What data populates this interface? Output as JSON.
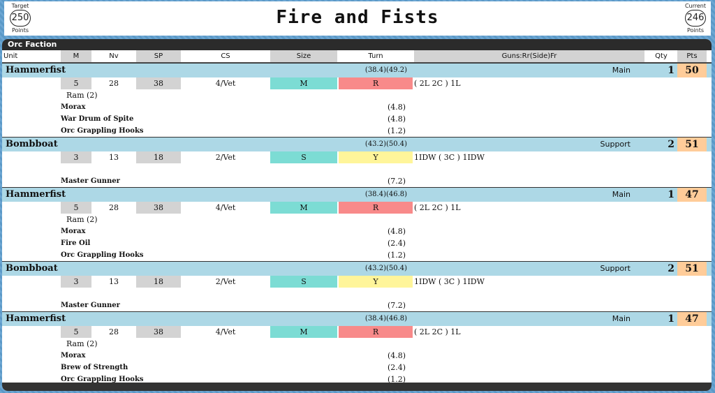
{
  "header": {
    "title": "Fire and Fists",
    "target": {
      "label_top": "Target",
      "value": "250",
      "label_bottom": "Points"
    },
    "current": {
      "label_top": "Current",
      "value": "246",
      "label_bottom": "Points"
    }
  },
  "faction": "Orc Faction",
  "columns": {
    "unit": "Unit",
    "m": "M",
    "nv": "Nv",
    "sp": "SP",
    "cs": "CS",
    "size": "Size",
    "turn": "Turn",
    "guns": "Guns:Rr(Side)Fr",
    "qty": "Qty",
    "pts": "Pts"
  },
  "units": [
    {
      "name": "Hammerfist",
      "cost": "(38.4)(49.2)",
      "role": "Main",
      "qty": "1",
      "pts": "50",
      "stats": {
        "m": "5",
        "nv": "28",
        "sp": "38",
        "cs": "4/Vet",
        "size": "M",
        "turn": "R",
        "guns": "( 2L 2C ) 1L"
      },
      "ram": "Ram (2)",
      "upgrades": [
        {
          "name": "Morax",
          "cost": "(4.8)"
        },
        {
          "name": "War Drum of Spite",
          "cost": "(4.8)"
        },
        {
          "name": "Orc Grappling Hooks",
          "cost": "(1.2)"
        }
      ]
    },
    {
      "name": "Bombboat",
      "cost": "(43.2)(50.4)",
      "role": "Support",
      "qty": "2",
      "pts": "51",
      "stats": {
        "m": "3",
        "nv": "13",
        "sp": "18",
        "cs": "2/Vet",
        "size": "S",
        "turn": "Y",
        "guns": "1IDW ( 3C ) 1IDW"
      },
      "ram": "",
      "upgrades": [
        {
          "name": "Master Gunner",
          "cost": "(7.2)"
        }
      ]
    },
    {
      "name": "Hammerfist",
      "cost": "(38.4)(46.8)",
      "role": "Main",
      "qty": "1",
      "pts": "47",
      "stats": {
        "m": "5",
        "nv": "28",
        "sp": "38",
        "cs": "4/Vet",
        "size": "M",
        "turn": "R",
        "guns": "( 2L 2C ) 1L"
      },
      "ram": "Ram (2)",
      "upgrades": [
        {
          "name": "Morax",
          "cost": "(4.8)"
        },
        {
          "name": "Fire Oil",
          "cost": "(2.4)"
        },
        {
          "name": "Orc Grappling Hooks",
          "cost": "(1.2)"
        }
      ]
    },
    {
      "name": "Bombboat",
      "cost": "(43.2)(50.4)",
      "role": "Support",
      "qty": "2",
      "pts": "51",
      "stats": {
        "m": "3",
        "nv": "13",
        "sp": "18",
        "cs": "2/Vet",
        "size": "S",
        "turn": "Y",
        "guns": "1IDW ( 3C ) 1IDW"
      },
      "ram": "",
      "upgrades": [
        {
          "name": "Master Gunner",
          "cost": "(7.2)"
        }
      ]
    },
    {
      "name": "Hammerfist",
      "cost": "(38.4)(46.8)",
      "role": "Main",
      "qty": "1",
      "pts": "47",
      "stats": {
        "m": "5",
        "nv": "28",
        "sp": "38",
        "cs": "4/Vet",
        "size": "M",
        "turn": "R",
        "guns": "( 2L 2C ) 1L"
      },
      "ram": "Ram (2)",
      "upgrades": [
        {
          "name": "Morax",
          "cost": "(4.8)"
        },
        {
          "name": "Brew of Strength",
          "cost": "(2.4)"
        },
        {
          "name": "Orc Grappling Hooks",
          "cost": "(1.2)"
        }
      ]
    }
  ],
  "colors": {
    "unit_header": "#add8e6",
    "pts": "#ffcc99",
    "size": "#7cdcd4",
    "turn_red": "#f88a8a",
    "turn_yellow": "#fff59a",
    "stat_gray": "#d3d3d3"
  }
}
